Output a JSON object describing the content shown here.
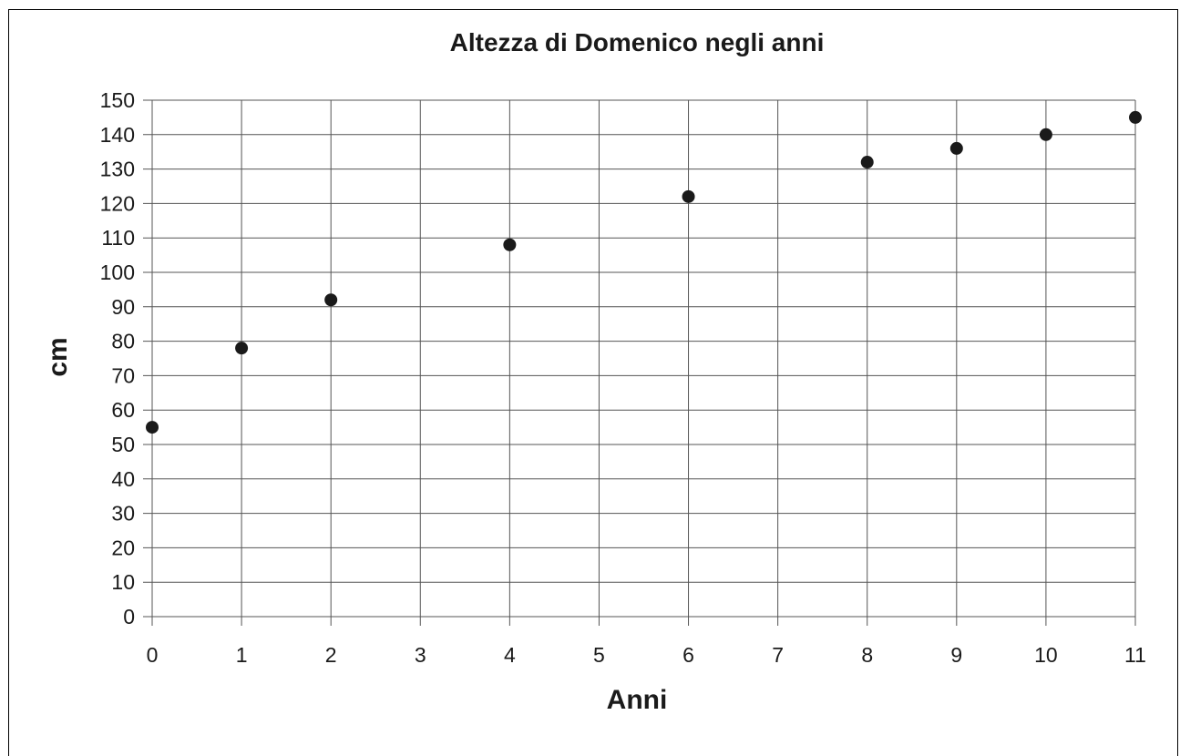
{
  "chart_data": {
    "type": "scatter",
    "title": "Altezza di Domenico negli anni",
    "xlabel": "Anni",
    "ylabel": "cm",
    "xlim": [
      0,
      11
    ],
    "ylim": [
      0,
      150
    ],
    "x_ticks": [
      0,
      1,
      2,
      3,
      4,
      5,
      6,
      7,
      8,
      9,
      10,
      11
    ],
    "y_ticks": [
      0,
      10,
      20,
      30,
      40,
      50,
      60,
      70,
      80,
      90,
      100,
      110,
      120,
      130,
      140,
      150
    ],
    "grid": true,
    "marker_color": "#1a1a1a",
    "series": [
      {
        "points": [
          {
            "x": 0,
            "y": 55
          },
          {
            "x": 1,
            "y": 78
          },
          {
            "x": 2,
            "y": 92
          },
          {
            "x": 4,
            "y": 108
          },
          {
            "x": 6,
            "y": 122
          },
          {
            "x": 8,
            "y": 132
          },
          {
            "x": 9,
            "y": 136
          },
          {
            "x": 10,
            "y": 140
          },
          {
            "x": 11,
            "y": 145
          }
        ]
      }
    ]
  }
}
